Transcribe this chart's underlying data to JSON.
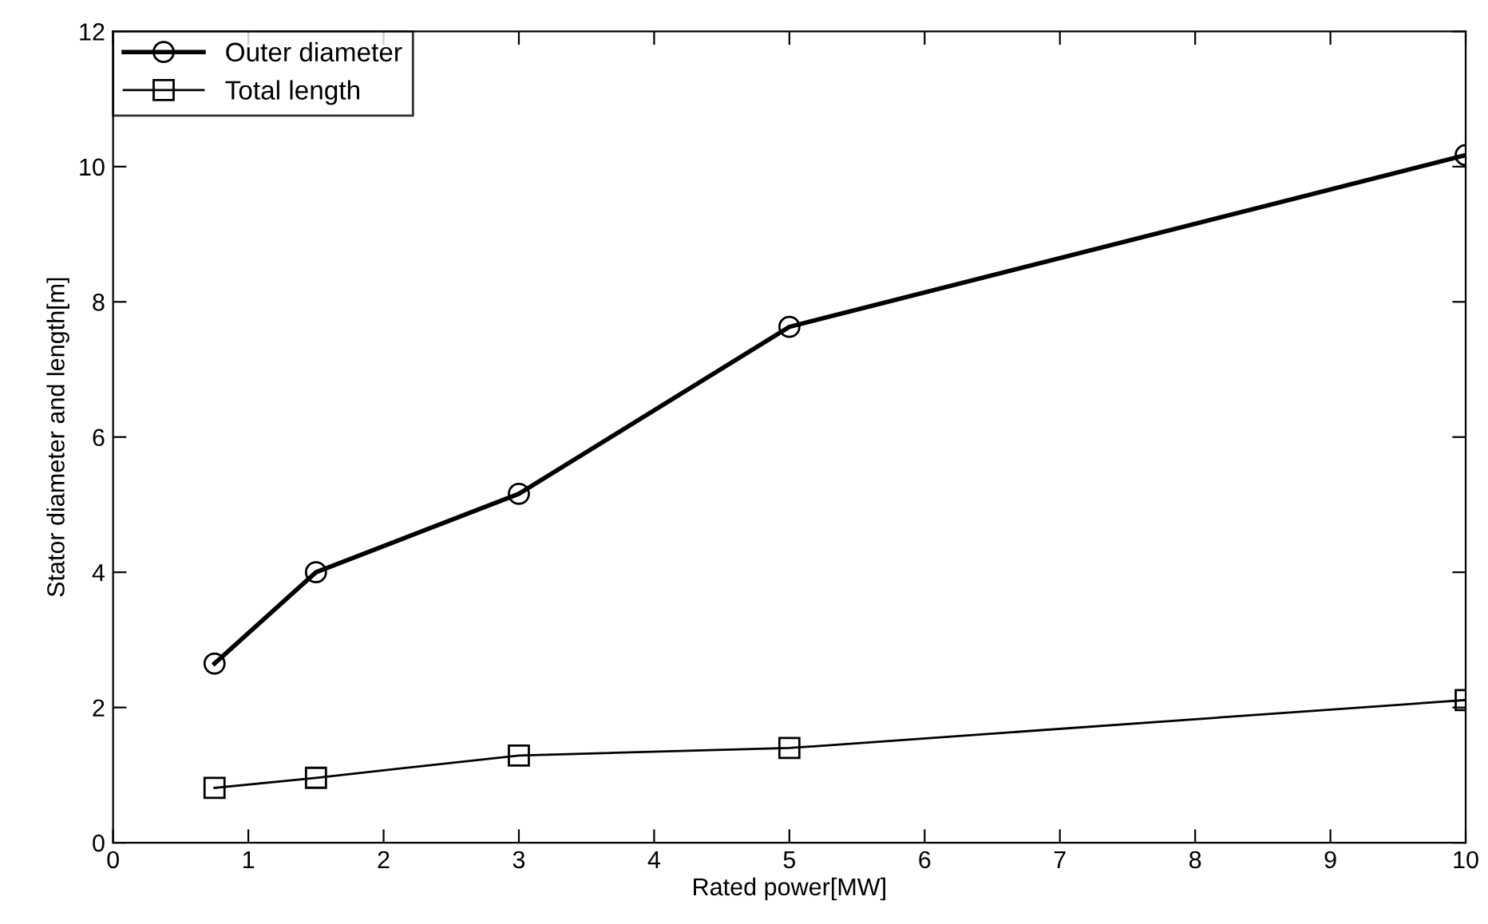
{
  "chart_data": {
    "type": "line",
    "xlabel": "Rated power[MW]",
    "ylabel": "Stator diameter and length[m]",
    "x": [
      0.75,
      1.5,
      3,
      5,
      10
    ],
    "series": [
      {
        "name": "Outer diameter",
        "color": "#000000",
        "values": [
          2.65,
          4.0,
          5.16,
          7.63,
          10.17
        ],
        "marker": "circle"
      },
      {
        "name": "Total length",
        "color": "#000000",
        "values": [
          0.81,
          0.96,
          1.29,
          1.4,
          2.11
        ],
        "marker": "square"
      }
    ],
    "xlim": [
      0,
      10
    ],
    "xticks": [
      0,
      1,
      2,
      3,
      4,
      5,
      6,
      7,
      8,
      9,
      10
    ],
    "ylim": [
      0,
      12
    ],
    "yticks": [
      0,
      2,
      4,
      6,
      8,
      10,
      12
    ],
    "grid": false,
    "legend": "top left",
    "line_style": "solid"
  }
}
